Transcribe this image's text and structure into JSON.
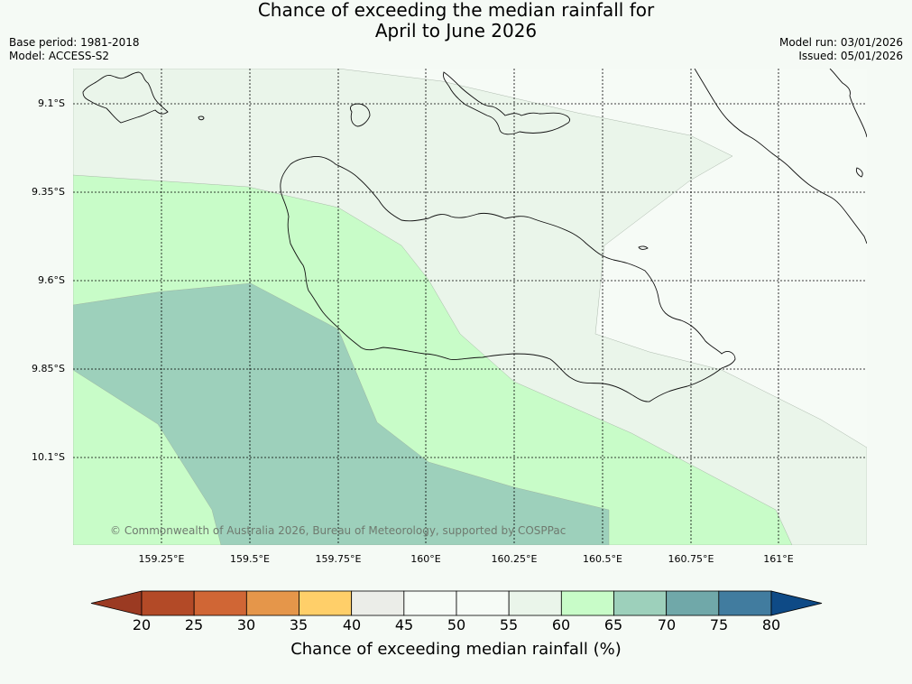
{
  "title": {
    "line1": "Chance of exceeding the median rainfall for",
    "line2": "April to June 2026"
  },
  "meta": {
    "base_period": "Base period: 1981-2018",
    "model": "Model: ACCESS-S2",
    "model_run": "Model run: 03/01/2026",
    "issued": "Issued: 05/01/2026"
  },
  "map": {
    "copyright": "© Commonwealth of Australia 2026, Bureau of Meteorology, supported by COSPPac",
    "lat_labels": [
      "9.1°S",
      "9.35°S",
      "9.6°S",
      "9.85°S",
      "10.1°S"
    ],
    "lon_labels": [
      "159.25°E",
      "159.5°E",
      "159.75°E",
      "160°E",
      "160.25°E",
      "160.5°E",
      "160.75°E",
      "161°E"
    ],
    "zones": [
      {
        "range": "55-60",
        "color": "#eaf5ea"
      },
      {
        "range": "60-65",
        "color": "#c8fcc8"
      },
      {
        "range": "65-70",
        "color": "#9dd0bb"
      }
    ]
  },
  "colorbar": {
    "label": "Chance of exceeding median rainfall (%)",
    "ticks": [
      "20",
      "25",
      "30",
      "35",
      "40",
      "45",
      "50",
      "55",
      "60",
      "65",
      "70",
      "75",
      "80"
    ],
    "under_color": "#9b3a22",
    "over_color": "#0e4a86",
    "colors": [
      "#b34a27",
      "#d06635",
      "#e5964a",
      "#ffcf69",
      "#ebede8",
      "#f6fbf6",
      "#f6fbf6",
      "#eaf5ea",
      "#c8fcc8",
      "#9dd0bb",
      "#70a8a9",
      "#417c9f"
    ]
  }
}
